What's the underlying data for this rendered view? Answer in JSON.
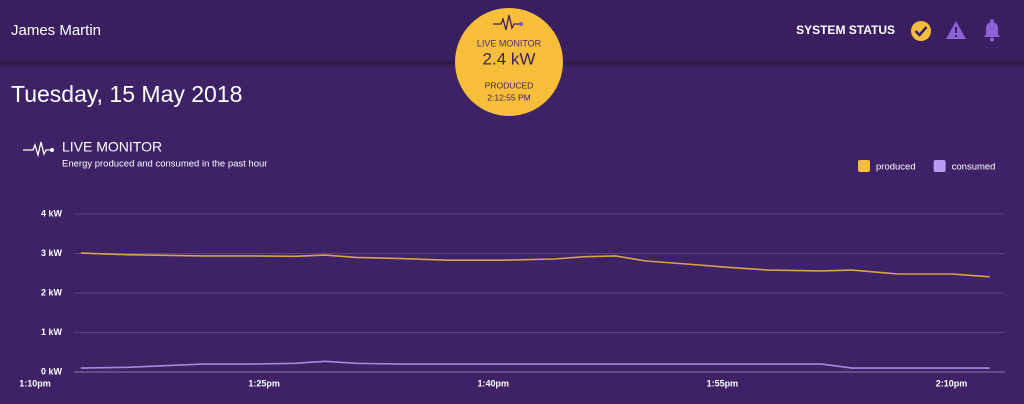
{
  "header": {
    "user": "James Martin",
    "status_label": "SYSTEM STATUS"
  },
  "date": "Tuesday, 15 May 2018",
  "badge": {
    "label": "LIVE MONITOR",
    "value": "2.4 kW",
    "sub_label": "PRODUCED",
    "time": "2:12:55 PM"
  },
  "chart_data": {
    "type": "line",
    "title": "LIVE MONITOR",
    "subtitle": "Energy produced and consumed in the past hour",
    "x": [
      793,
      796,
      801,
      804,
      807,
      809,
      811,
      814,
      817,
      820.5,
      824,
      826,
      828,
      830,
      833.5,
      835,
      838,
      841.5,
      843.5,
      846.5,
      850,
      852.5
    ],
    "xlim": [
      790,
      853.5
    ],
    "xticks": [
      {
        "value": 790,
        "label": "1:10pm"
      },
      {
        "value": 805,
        "label": "1:25pm"
      },
      {
        "value": 820,
        "label": "1:40pm"
      },
      {
        "value": 835,
        "label": "1:55pm"
      },
      {
        "value": 850,
        "label": "2:10pm"
      }
    ],
    "ylim": [
      0,
      4
    ],
    "yticks": [
      {
        "value": 0,
        "label": "0 kW"
      },
      {
        "value": 1,
        "label": "1 kW"
      },
      {
        "value": 2,
        "label": "2 kW"
      },
      {
        "value": 3,
        "label": "3 kW"
      },
      {
        "value": 4,
        "label": "4 kW"
      }
    ],
    "grid": true,
    "legend": "top-right",
    "series": [
      {
        "name": "produced",
        "color": "#f5bd3c",
        "line_color": "#d6a346",
        "values": [
          3.01,
          2.97,
          2.94,
          2.94,
          2.93,
          2.96,
          2.9,
          2.87,
          2.83,
          2.83,
          2.86,
          2.92,
          2.94,
          2.81,
          2.71,
          2.66,
          2.58,
          2.56,
          2.58,
          2.48,
          2.48,
          2.41
        ]
      },
      {
        "name": "consumed",
        "color": "#b79cf2",
        "line_color": "#a68ae0",
        "values": [
          0.1,
          0.12,
          0.2,
          0.2,
          0.22,
          0.27,
          0.22,
          0.2,
          0.2,
          0.2,
          0.2,
          0.2,
          0.2,
          0.2,
          0.2,
          0.2,
          0.2,
          0.2,
          0.1,
          0.1,
          0.1,
          0.1
        ]
      }
    ]
  }
}
